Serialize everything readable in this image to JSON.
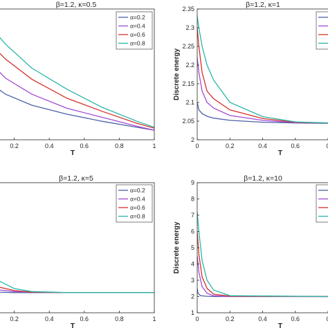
{
  "chart_data": [
    {
      "type": "line",
      "title": "β=1.2, κ=0.5",
      "xlabel": "T",
      "ylabel": "",
      "xlim": [
        0,
        1
      ],
      "xticks": [
        "0.2",
        "0.4",
        "0.6",
        "0.8",
        "1"
      ],
      "yticks": [],
      "legend": "top-right",
      "series": [
        {
          "name": "α=0.2",
          "color": "#4c5fa8",
          "x": [
            0.07,
            0.15,
            0.3,
            0.5,
            0.7,
            0.9,
            1.0
          ],
          "y": [
            0.0,
            -0.2,
            -0.42,
            -0.6,
            -0.74,
            -0.86,
            -0.92
          ]
        },
        {
          "name": "α=0.4",
          "color": "#a24ad3",
          "x": [
            0.07,
            0.15,
            0.3,
            0.5,
            0.7,
            0.9,
            1.0
          ],
          "y": [
            0.4,
            0.12,
            -0.2,
            -0.48,
            -0.66,
            -0.84,
            -0.92
          ]
        },
        {
          "name": "α=0.6",
          "color": "#d2322a",
          "x": [
            0.07,
            0.15,
            0.3,
            0.5,
            0.7,
            0.9,
            1.0
          ],
          "y": [
            0.78,
            0.5,
            0.1,
            -0.28,
            -0.54,
            -0.78,
            -0.88
          ]
        },
        {
          "name": "α=0.8",
          "color": "#26b5a6",
          "x": [
            0.07,
            0.15,
            0.3,
            0.5,
            0.7,
            0.9,
            1.0
          ],
          "y": [
            1.12,
            0.8,
            0.32,
            -0.1,
            -0.46,
            -0.74,
            -0.86
          ]
        }
      ]
    },
    {
      "type": "line",
      "title": "β=1.2, κ=1",
      "xlabel": "T",
      "ylabel": "Discrete energy",
      "xlim": [
        0,
        0.8
      ],
      "ylim": [
        2,
        2.35
      ],
      "xticks": [
        "0",
        "0.2",
        "0.4",
        "0.6",
        "0"
      ],
      "yticks": [
        "2",
        "2.05",
        "2.1",
        "2.15",
        "2.2",
        "2.25",
        "2.3",
        "2.35"
      ],
      "legend": "top-right",
      "series": [
        {
          "name": "",
          "color": "#4c5fa8",
          "x": [
            0.0,
            0.01,
            0.03,
            0.06,
            0.1,
            0.2,
            0.4,
            0.6,
            0.8
          ],
          "y": [
            2.1,
            2.08,
            2.07,
            2.063,
            2.058,
            2.052,
            2.047,
            2.045,
            2.044
          ]
        },
        {
          "name": "",
          "color": "#a24ad3",
          "x": [
            0.0,
            0.01,
            0.03,
            0.06,
            0.1,
            0.2,
            0.4,
            0.6,
            0.8
          ],
          "y": [
            2.22,
            2.18,
            2.13,
            2.1,
            2.085,
            2.065,
            2.052,
            2.046,
            2.045
          ]
        },
        {
          "name": "",
          "color": "#d2322a",
          "x": [
            0.0,
            0.01,
            0.03,
            0.06,
            0.1,
            0.2,
            0.4,
            0.6,
            0.8
          ],
          "y": [
            2.3,
            2.25,
            2.18,
            2.13,
            2.11,
            2.08,
            2.057,
            2.047,
            2.045
          ]
        },
        {
          "name": "",
          "color": "#26b5a6",
          "x": [
            0.0,
            0.01,
            0.03,
            0.06,
            0.1,
            0.2,
            0.4,
            0.6,
            0.8
          ],
          "y": [
            2.33,
            2.3,
            2.25,
            2.2,
            2.16,
            2.1,
            2.062,
            2.048,
            2.045
          ]
        }
      ]
    },
    {
      "type": "line",
      "title": "β=1.2, κ=5",
      "xlabel": "T",
      "ylabel": "",
      "xlim": [
        0,
        1
      ],
      "xticks": [
        "0.2",
        "0.4",
        "0.6",
        "0.8",
        "1"
      ],
      "yticks": [],
      "legend": "top-right",
      "series": [
        {
          "name": "α=0.2",
          "color": "#4c5fa8",
          "x": [
            0.0,
            0.1,
            0.2,
            0.3,
            0.5,
            1.0
          ],
          "y": [
            2.02,
            2.01,
            2.0,
            2.0,
            2.0,
            2.0
          ]
        },
        {
          "name": "α=0.4",
          "color": "#a24ad3",
          "x": [
            0.0,
            0.1,
            0.2,
            0.3,
            0.5,
            1.0
          ],
          "y": [
            2.1,
            2.06,
            2.02,
            2.01,
            2.0,
            2.0
          ]
        },
        {
          "name": "α=0.6",
          "color": "#d2322a",
          "x": [
            0.0,
            0.1,
            0.2,
            0.3,
            0.5,
            1.0
          ],
          "y": [
            2.25,
            2.12,
            2.04,
            2.01,
            2.0,
            2.0
          ]
        },
        {
          "name": "α=0.8",
          "color": "#26b5a6",
          "x": [
            0.0,
            0.08,
            0.12,
            0.2,
            0.3,
            0.5,
            1.0
          ],
          "y": [
            2.45,
            2.4,
            2.22,
            2.08,
            2.02,
            2.0,
            2.0
          ]
        }
      ]
    },
    {
      "type": "line",
      "title": "β=1.2, κ=10",
      "xlabel": "T",
      "ylabel": "Discrete energy",
      "xlim": [
        0,
        0.8
      ],
      "ylim": [
        1,
        9
      ],
      "xticks": [
        "0",
        "0.2",
        "0.4",
        "0.6",
        "0"
      ],
      "yticks": [
        "1",
        "2",
        "3",
        "4",
        "5",
        "6",
        "7",
        "8",
        "9"
      ],
      "legend": "top-right",
      "series": [
        {
          "name": "",
          "color": "#4c5fa8",
          "x": [
            0.0,
            0.005,
            0.02,
            0.05,
            0.1,
            0.8
          ],
          "y": [
            2.5,
            2.2,
            2.05,
            2.02,
            2.0,
            2.0
          ]
        },
        {
          "name": "",
          "color": "#a24ad3",
          "x": [
            0.0,
            0.01,
            0.03,
            0.06,
            0.1,
            0.2,
            0.8
          ],
          "y": [
            4.5,
            3.5,
            2.6,
            2.2,
            2.05,
            2.0,
            2.0
          ]
        },
        {
          "name": "",
          "color": "#d2322a",
          "x": [
            0.0,
            0.01,
            0.03,
            0.06,
            0.1,
            0.2,
            0.8
          ],
          "y": [
            6.0,
            4.6,
            3.2,
            2.5,
            2.15,
            2.02,
            2.0
          ]
        },
        {
          "name": "",
          "color": "#26b5a6",
          "x": [
            0.0,
            0.01,
            0.03,
            0.06,
            0.1,
            0.2,
            0.8
          ],
          "y": [
            7.2,
            6.0,
            4.2,
            3.0,
            2.4,
            2.05,
            2.0
          ]
        }
      ]
    }
  ]
}
